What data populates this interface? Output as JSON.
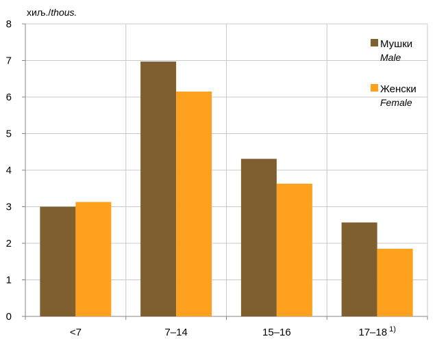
{
  "chart_data": {
    "type": "bar",
    "unit_label": {
      "main": "хиљ./",
      "italic": "thous."
    },
    "categories": [
      "<7",
      "7–14",
      "15–16",
      "17–18"
    ],
    "category_superscripts": [
      "",
      "",
      "",
      "1)"
    ],
    "series": [
      {
        "name": "Мушки",
        "name_en": "Male",
        "color": "#7f5f2f",
        "values": [
          3.0,
          6.97,
          4.31,
          2.57
        ]
      },
      {
        "name": "Женски",
        "name_en": "Female",
        "color": "#fda11e",
        "values": [
          3.13,
          6.15,
          3.63,
          1.85
        ]
      }
    ],
    "ylim": [
      0,
      8
    ],
    "yticks": [
      0,
      1,
      2,
      3,
      4,
      5,
      6,
      7,
      8
    ],
    "grid": true,
    "legend_position": "top-right",
    "title": "",
    "xlabel": ""
  }
}
